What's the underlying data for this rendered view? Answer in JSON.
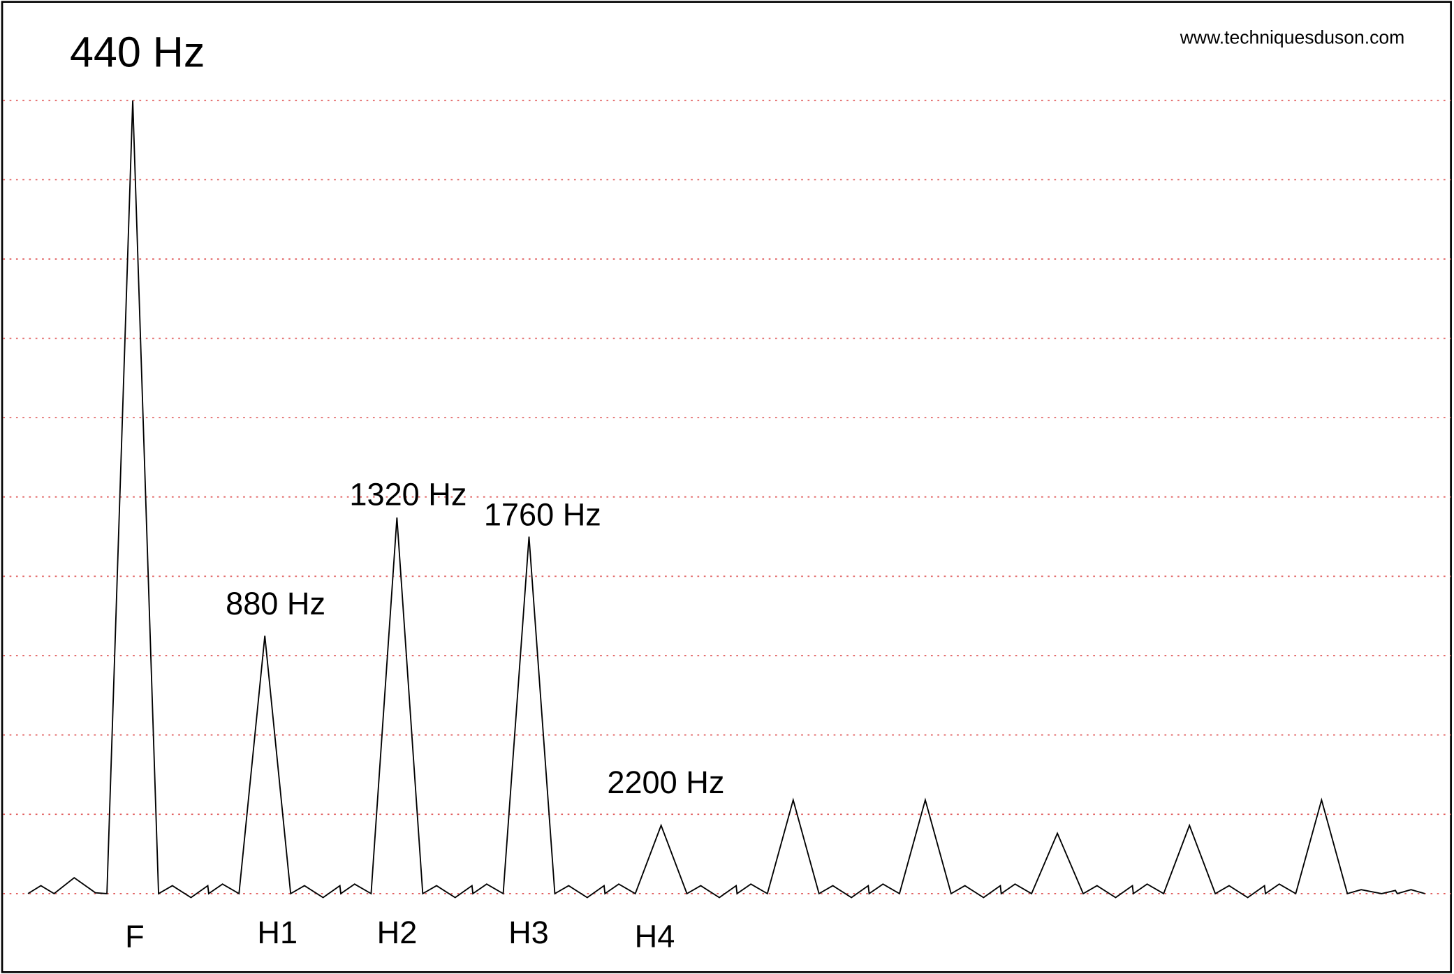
{
  "chart_data": {
    "type": "line",
    "peak_labels": [
      "440 Hz",
      "880 Hz",
      "1320 Hz",
      "1760 Hz",
      "2200 Hz"
    ],
    "harmonic_labels": [
      "F",
      "H1",
      "H2",
      "H3",
      "H4"
    ],
    "watermark": "www.techniquesduson.com",
    "x": [
      91,
      134,
      178,
      245,
      316,
      354,
      440,
      526,
      572,
      634,
      690,
      693,
      739,
      794,
      880,
      966,
      1012,
      1074,
      1130,
      1133,
      1179,
      1234,
      1320,
      1406,
      1452,
      1514,
      1570,
      1573,
      1619,
      1674,
      1760,
      1846,
      1892,
      1954,
      2010,
      2013,
      2059,
      2114,
      2200,
      2286,
      2332,
      2394,
      2450,
      2453,
      2499,
      2554,
      2640,
      2726,
      2772,
      2834,
      2890,
      2893,
      2939,
      2994,
      3080,
      3166,
      3212,
      3274,
      3330,
      3333,
      3379,
      3434,
      3520,
      3606,
      3652,
      3714,
      3770,
      3773,
      3819,
      3874,
      3960,
      4046,
      4092,
      4154,
      4210,
      4213,
      4259,
      4314,
      4400,
      4486,
      4532,
      4600,
      4646,
      4652,
      4698,
      4744
    ],
    "values": [
      0,
      0.1,
      0,
      0.2,
      0.01,
      0,
      10,
      0,
      0.1,
      -0.05,
      0.1,
      0,
      0.12,
      0,
      3.25,
      0,
      0.1,
      -0.05,
      0.1,
      0,
      0.12,
      0,
      4.74,
      0,
      0.1,
      -0.05,
      0.1,
      0,
      0.12,
      0,
      4.5,
      0,
      0.1,
      -0.05,
      0.1,
      0,
      0.12,
      0,
      0.86,
      0,
      0.1,
      -0.05,
      0.1,
      0,
      0.12,
      0,
      1.18,
      0,
      0.1,
      -0.05,
      0.1,
      0,
      0.12,
      0,
      1.18,
      0,
      0.1,
      -0.05,
      0.1,
      0,
      0.12,
      0,
      0.76,
      0,
      0.1,
      -0.05,
      0.1,
      0,
      0.12,
      0,
      0.86,
      0,
      0.1,
      -0.05,
      0.1,
      0,
      0.12,
      0,
      1.18,
      0,
      0.05,
      0,
      0.04,
      0,
      0.05,
      0
    ],
    "color": "#000000",
    "xlim": [
      8,
      4831
    ],
    "ylim": [
      -0.99,
      11.23
    ],
    "yticks": [
      0,
      1,
      2,
      3,
      4,
      5,
      6,
      7,
      8,
      9,
      10
    ],
    "grid": true,
    "grid_color": "#e05a5a"
  }
}
